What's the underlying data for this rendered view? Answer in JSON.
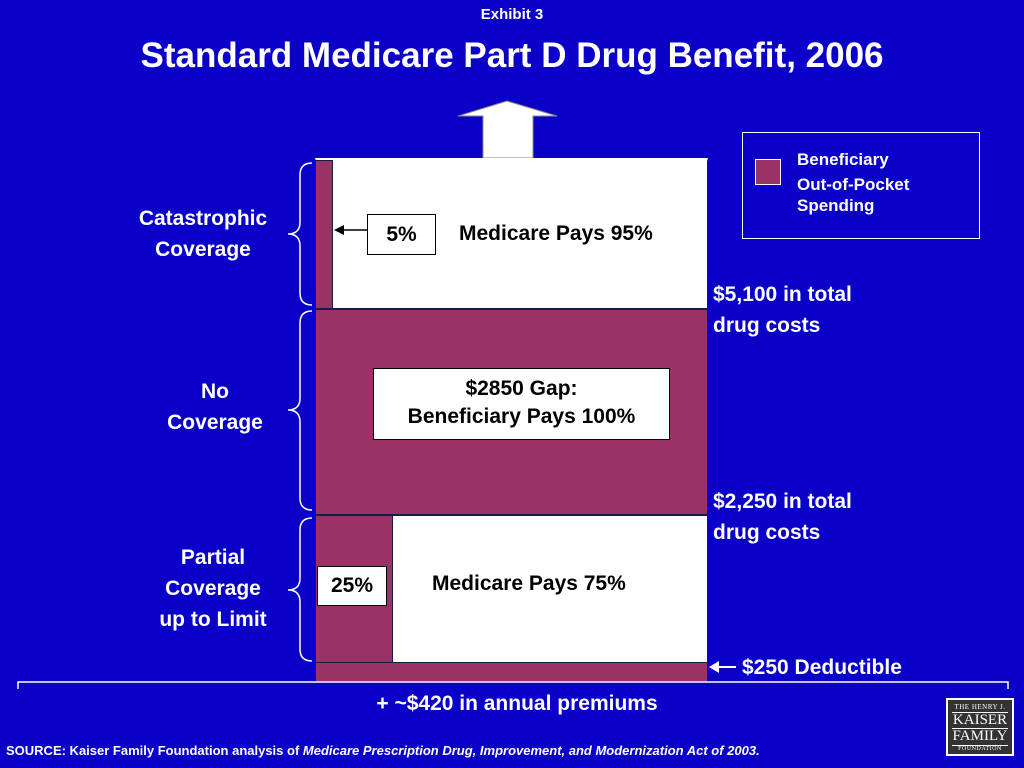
{
  "exhibit_label": "Exhibit 3",
  "title": "Standard Medicare Part D Drug Benefit, 2006",
  "legend": {
    "line1": "Beneficiary",
    "line2": "Out-of-Pocket",
    "line3": "Spending",
    "color": "#993366"
  },
  "tiers": {
    "catastrophic": {
      "bracket_label_1": "Catastrophic",
      "bracket_label_2": "Coverage",
      "beneficiary_share": "5%",
      "medicare_text": "Medicare Pays 95%"
    },
    "gap": {
      "bracket_label_1": "No",
      "bracket_label_2": "Coverage",
      "box_line1": "$2850 Gap:",
      "box_line2": "Beneficiary Pays 100%"
    },
    "partial": {
      "bracket_label_1": "Partial",
      "bracket_label_2": "Coverage",
      "bracket_label_3": "up to Limit",
      "beneficiary_share": "25%",
      "medicare_text": "Medicare Pays 75%"
    }
  },
  "thresholds": {
    "upper_1": "$5,100 in total",
    "upper_2": "drug costs",
    "lower_1": "$2,250 in total",
    "lower_2": "drug costs",
    "deductible": "$250 Deductible"
  },
  "premiums": "+ ~$420 in annual premiums",
  "source": {
    "prefix": "SOURCE: Kaiser Family Foundation analysis of ",
    "italic": "Medicare Prescription Drug, Improvement, and Modernization Act of 2003."
  },
  "logo": {
    "line1": "THE HENRY J.",
    "line2": "KAISER",
    "line3": "FAMILY",
    "line4": "FOUNDATION"
  },
  "colors": {
    "background": "#0a00c8",
    "beneficiary": "#993366",
    "medicare": "#ffffff"
  }
}
